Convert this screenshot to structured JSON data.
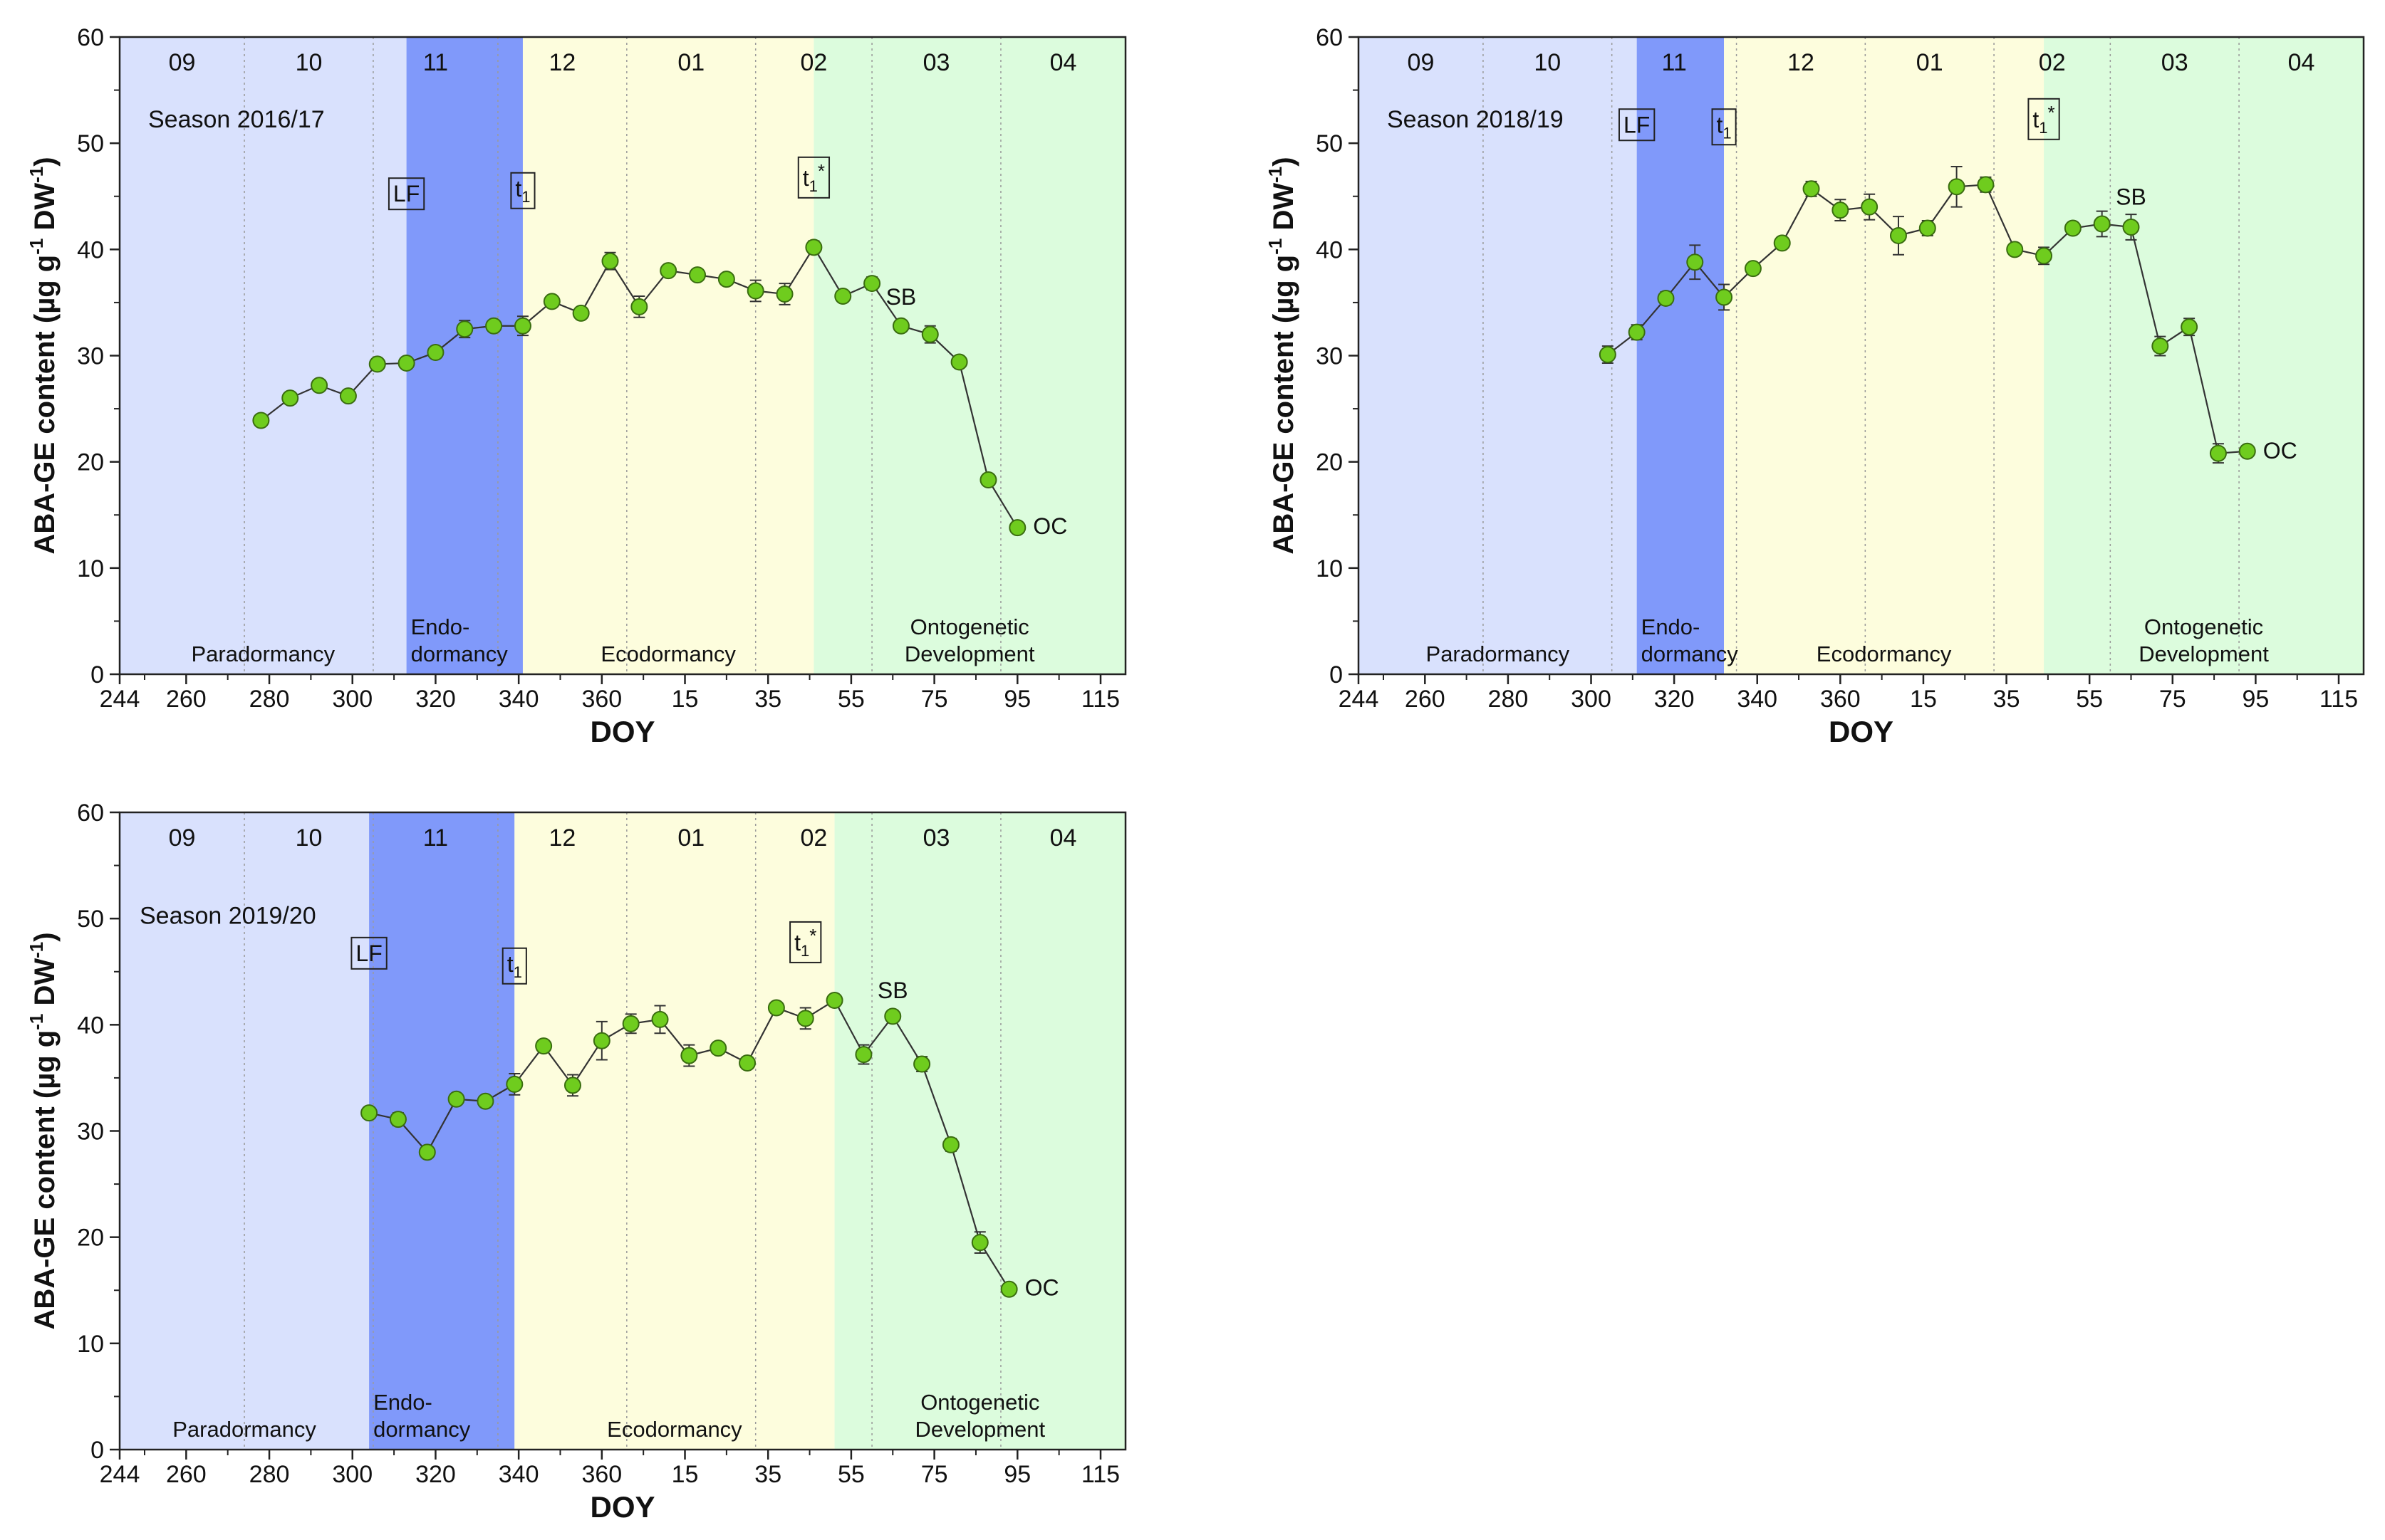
{
  "chart_data": [
    {
      "type": "line",
      "title": "Season 2016/17",
      "xlabel": "DOY",
      "ylabel": "ABA-GE content (µg g",
      "ylabel_sup1": "-1",
      "ylabel_mid": " DW",
      "ylabel_sup2": "-1",
      "ylabel_end": ")",
      "ylim": [
        0,
        60
      ],
      "yticks": [
        0,
        10,
        20,
        30,
        40,
        50,
        60
      ],
      "xticks": [
        "244",
        "260",
        "280",
        "300",
        "320",
        "340",
        "360",
        "15",
        "35",
        "55",
        "75",
        "95",
        "115"
      ],
      "months": [
        "09",
        "10",
        "11",
        "12",
        "01",
        "02",
        "03",
        "04"
      ],
      "phases": [
        {
          "name": "Paradormancy",
          "lines": [
            "Paradormancy"
          ],
          "color": "#d9e1fd"
        },
        {
          "name": "Endodormancy",
          "lines": [
            "Endo-",
            "dormancy"
          ],
          "color": "#8099fa"
        },
        {
          "name": "Ecodormancy",
          "lines": [
            "Ecodormancy"
          ],
          "color": "#fdfddd"
        },
        {
          "name": "Ontogenetic Development",
          "lines": [
            "Ontogenetic",
            "Development"
          ],
          "color": "#dcfcdd"
        }
      ],
      "series": [
        {
          "color": "#6fcc1e",
          "x": [
            278,
            285,
            292,
            299,
            306,
            313,
            320,
            327,
            334,
            341,
            348,
            355,
            362,
            369,
            376,
            383,
            390,
            397,
            404,
            411,
            418,
            425,
            432,
            439,
            446,
            453,
            460
          ],
          "y": [
            23.9,
            26.0,
            27.2,
            26.2,
            29.2,
            29.3,
            30.3,
            32.5,
            32.8,
            32.8,
            35.1,
            34.0,
            38.9,
            34.6,
            38.0,
            37.6,
            37.2,
            36.1,
            35.8,
            40.2,
            35.6,
            36.8,
            32.8,
            32.0,
            29.4,
            18.3,
            13.8
          ],
          "err": [
            0,
            0,
            0,
            0,
            0,
            0.4,
            0,
            0.8,
            0.4,
            0.9,
            0,
            0,
            0.8,
            1.0,
            0,
            0,
            0,
            1.0,
            1.0,
            0.6,
            0,
            0.6,
            0,
            0.8,
            0,
            0,
            0
          ]
        }
      ],
      "annotations": [
        {
          "id": "lf",
          "text": "LF",
          "boxed": true,
          "x": 313,
          "y": 44.5
        },
        {
          "id": "t1",
          "text": "t",
          "sub": "1",
          "boxed": true,
          "x": 341,
          "y": 45
        },
        {
          "id": "t1star",
          "text": "t",
          "sub": "1",
          "sup": "*",
          "boxed": true,
          "x": 411,
          "y": 46
        },
        {
          "id": "sb",
          "text": "SB",
          "boxed": false,
          "x": 432,
          "y": 34.8
        },
        {
          "id": "oc",
          "text": "OC",
          "boxed": false,
          "x": 460,
          "y": 13.2
        }
      ]
    },
    {
      "type": "line",
      "title": "Season 2018/19",
      "xlabel": "DOY",
      "ylabel": "ABA-GE content (µg g",
      "ylabel_sup1": "-1",
      "ylabel_mid": " DW",
      "ylabel_sup2": "-1",
      "ylabel_end": ")",
      "ylim": [
        0,
        60
      ],
      "yticks": [
        0,
        10,
        20,
        30,
        40,
        50,
        60
      ],
      "xticks": [
        "244",
        "260",
        "280",
        "300",
        "320",
        "340",
        "360",
        "15",
        "35",
        "55",
        "75",
        "95",
        "115"
      ],
      "months": [
        "09",
        "10",
        "11",
        "12",
        "01",
        "02",
        "03",
        "04"
      ],
      "phases": [
        {
          "name": "Paradormancy",
          "lines": [
            "Paradormancy"
          ],
          "color": "#d9e1fd"
        },
        {
          "name": "Endodormancy",
          "lines": [
            "Endo-",
            "dormancy"
          ],
          "color": "#8099fa"
        },
        {
          "name": "Ecodormancy",
          "lines": [
            "Ecodormancy"
          ],
          "color": "#fdfddd"
        },
        {
          "name": "Ontogenetic Development",
          "lines": [
            "Ontogenetic",
            "Development"
          ],
          "color": "#dcfcdd"
        }
      ],
      "series": [
        {
          "color": "#6fcc1e",
          "x": [
            304,
            311,
            318,
            325,
            332,
            339,
            346,
            353,
            360,
            367,
            374,
            381,
            388,
            395,
            402,
            409,
            416,
            423,
            430,
            437,
            444,
            451,
            458
          ],
          "y": [
            30.1,
            32.2,
            35.4,
            38.8,
            35.5,
            38.2,
            40.6,
            45.7,
            43.7,
            44.0,
            41.3,
            42.0,
            45.9,
            46.1,
            40.0,
            39.4,
            42.0,
            42.4,
            42.1,
            30.9,
            32.7,
            20.8,
            21.0
          ],
          "err": [
            0.8,
            0.7,
            0.6,
            1.6,
            1.2,
            0,
            0,
            0.7,
            1.0,
            1.2,
            1.8,
            0.7,
            1.9,
            0.7,
            0,
            0.8,
            0,
            1.2,
            1.2,
            0.9,
            0.8,
            0.9,
            0
          ],
          "orig_x_note": ""
        }
      ],
      "annotations": [
        {
          "id": "lf",
          "text": "LF",
          "boxed": true,
          "x": 311,
          "y": 51
        },
        {
          "id": "t1",
          "text": "t",
          "sub": "1",
          "boxed": true,
          "x": 332,
          "y": 51
        },
        {
          "id": "t1star",
          "text": "t",
          "sub": "1",
          "sup": "*",
          "boxed": true,
          "x": 409,
          "y": 51.5
        },
        {
          "id": "sb",
          "text": "SB",
          "boxed": false,
          "x": 430,
          "y": 44.2
        },
        {
          "id": "oc",
          "text": "OC",
          "boxed": false,
          "x": 458,
          "y": 20.3
        }
      ]
    },
    {
      "type": "line",
      "title": "Season 2019/20",
      "xlabel": "DOY",
      "ylabel": "ABA-GE content (µg g",
      "ylabel_sup1": "-1",
      "ylabel_mid": " DW",
      "ylabel_sup2": "-1",
      "ylabel_end": ")",
      "ylim": [
        0,
        60
      ],
      "yticks": [
        0,
        10,
        20,
        30,
        40,
        50,
        60
      ],
      "xticks": [
        "244",
        "260",
        "280",
        "300",
        "320",
        "340",
        "360",
        "15",
        "35",
        "55",
        "75",
        "95",
        "115"
      ],
      "months": [
        "09",
        "10",
        "11",
        "12",
        "01",
        "02",
        "03",
        "04"
      ],
      "phases": [
        {
          "name": "Paradormancy",
          "lines": [
            "Paradormancy"
          ],
          "color": "#d9e1fd"
        },
        {
          "name": "Endodormancy",
          "lines": [
            "Endo-",
            "dormancy"
          ],
          "color": "#8099fa"
        },
        {
          "name": "Ecodormancy",
          "lines": [
            "Ecodormancy"
          ],
          "color": "#fdfddd"
        },
        {
          "name": "Ontogenetic Development",
          "lines": [
            "Ontogenetic",
            "Development"
          ],
          "color": "#dcfcdd"
        }
      ],
      "series": [
        {
          "color": "#6fcc1e",
          "x": [
            304,
            311,
            318,
            325,
            332,
            339,
            346,
            353,
            360,
            367,
            374,
            381,
            388,
            395,
            402,
            409,
            416,
            423,
            430,
            437,
            444,
            451,
            458
          ],
          "y": [
            31.7,
            31.1,
            28.0,
            33.0,
            32.8,
            34.4,
            38.0,
            34.3,
            38.5,
            40.1,
            40.5,
            37.1,
            37.8,
            36.4,
            41.6,
            40.6,
            42.3,
            37.2,
            40.8,
            36.3,
            28.7,
            19.5,
            15.1
          ],
          "err": [
            0,
            0.6,
            0,
            0,
            0,
            1.0,
            0,
            1.0,
            1.8,
            0.9,
            1.3,
            1.0,
            0.4,
            0,
            0,
            1.0,
            0,
            0.9,
            0,
            0.7,
            0.6,
            1.0,
            0
          ]
        }
      ],
      "annotations": [
        {
          "id": "lf",
          "text": "LF",
          "boxed": true,
          "x": 304,
          "y": 46
        },
        {
          "id": "t1",
          "text": "t",
          "sub": "1",
          "boxed": true,
          "x": 339,
          "y": 45
        },
        {
          "id": "t1star",
          "text": "t",
          "sub": "1",
          "sup": "*",
          "boxed": true,
          "x": 409,
          "y": 47
        },
        {
          "id": "sb",
          "text": "SB",
          "boxed": false,
          "x": 430,
          "y": 42.5
        },
        {
          "id": "oc",
          "text": "OC",
          "boxed": false,
          "x": 458,
          "y": 14.5
        }
      ]
    }
  ]
}
